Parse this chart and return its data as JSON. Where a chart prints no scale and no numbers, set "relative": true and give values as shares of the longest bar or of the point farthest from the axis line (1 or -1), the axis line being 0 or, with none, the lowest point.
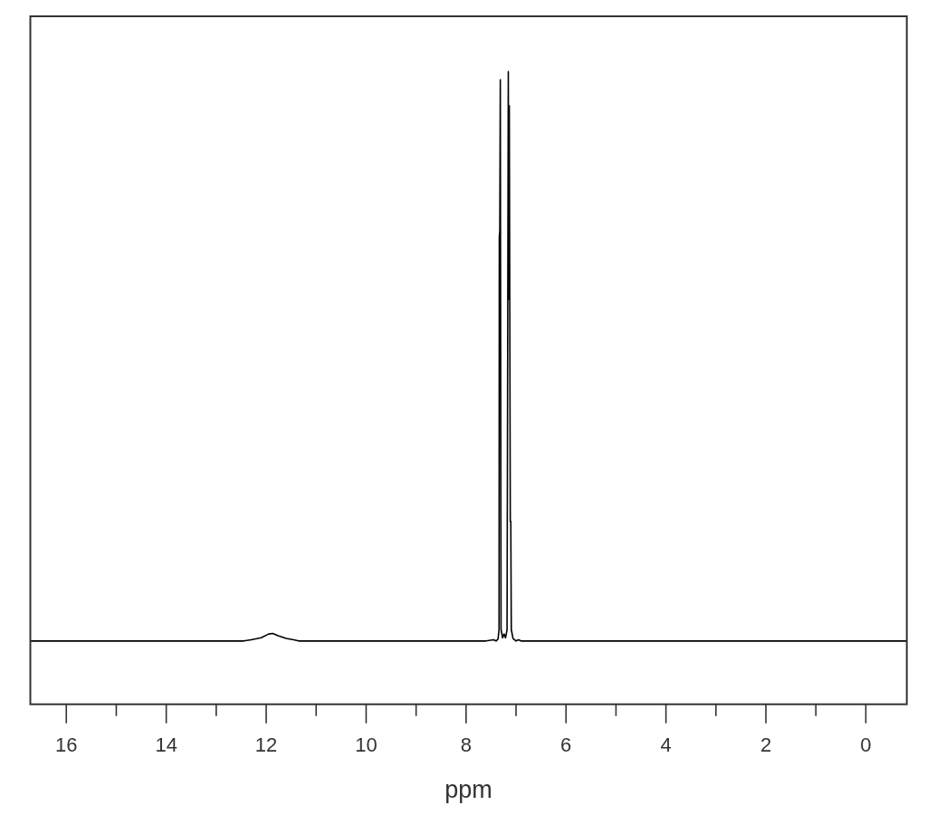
{
  "chart_data": {
    "type": "line",
    "relative": true,
    "xlabel": "ppm",
    "xlim": [
      16.72,
      -0.82
    ],
    "xticks": [
      16,
      {
        "value": 15,
        "label": null
      },
      14,
      {
        "value": 13,
        "label": null
      },
      12,
      {
        "value": 11,
        "label": null
      },
      10,
      {
        "value": 9,
        "label": null
      },
      8,
      {
        "value": 7,
        "label": null
      },
      6,
      {
        "value": 5,
        "label": null
      },
      4,
      {
        "value": 3,
        "label": null
      },
      2,
      {
        "value": 1,
        "label": null
      },
      0
    ],
    "x": [
      16.72,
      12.45,
      12.3,
      12.1,
      11.95,
      11.87,
      11.75,
      11.6,
      11.45,
      11.35,
      7.6,
      7.45,
      7.4,
      7.36,
      7.34,
      7.335,
      7.325,
      7.315,
      7.3,
      7.27,
      7.24,
      7.21,
      7.18,
      7.155,
      7.145,
      7.135,
      7.115,
      7.105,
      7.095,
      7.06,
      7.0,
      6.95,
      6.9,
      -0.82
    ],
    "series": [
      {
        "color": "#000000",
        "values": [
          0.1,
          0.1,
          0.102,
          0.105,
          0.111,
          0.112,
          0.108,
          0.104,
          0.102,
          0.1,
          0.1,
          0.102,
          0.1,
          0.103,
          0.118,
          0.739,
          0.748,
          0.987,
          0.118,
          0.105,
          0.111,
          0.105,
          0.118,
          1,
          0.64,
          0.946,
          0.289,
          0.289,
          0.118,
          0.104,
          0.1,
          0.102,
          0.1,
          0.1
        ]
      }
    ]
  }
}
